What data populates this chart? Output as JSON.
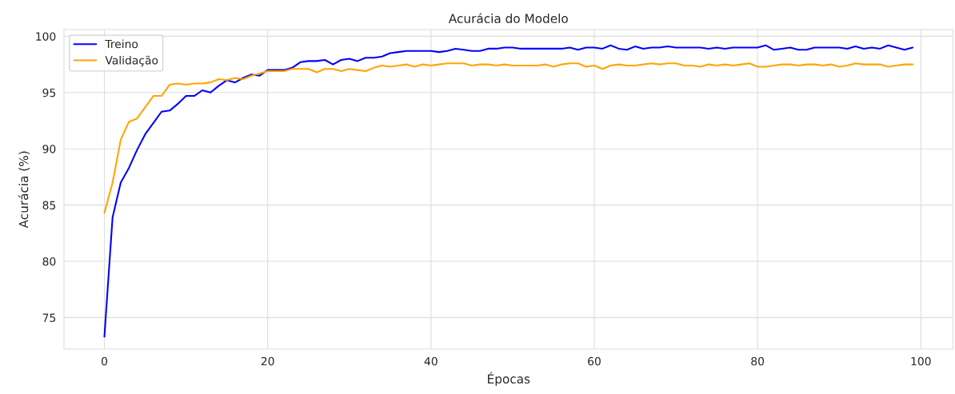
{
  "chart_data": {
    "type": "line",
    "title": "Acurácia do Modelo",
    "xlabel": "Épocas",
    "ylabel": "Acurácia (%)",
    "x": [
      0,
      1,
      2,
      3,
      4,
      5,
      6,
      7,
      8,
      9,
      10,
      11,
      12,
      13,
      14,
      15,
      16,
      17,
      18,
      19,
      20,
      21,
      22,
      23,
      24,
      25,
      26,
      27,
      28,
      29,
      30,
      31,
      32,
      33,
      34,
      35,
      36,
      37,
      38,
      39,
      40,
      41,
      42,
      43,
      44,
      45,
      46,
      47,
      48,
      49,
      50,
      51,
      52,
      53,
      54,
      55,
      56,
      57,
      58,
      59,
      60,
      61,
      62,
      63,
      64,
      65,
      66,
      67,
      68,
      69,
      70,
      71,
      72,
      73,
      74,
      75,
      76,
      77,
      78,
      79,
      80,
      81,
      82,
      83,
      84,
      85,
      86,
      87,
      88,
      89,
      90,
      91,
      92,
      93,
      94,
      95,
      96,
      97,
      98,
      99
    ],
    "series": [
      {
        "name": "Treino",
        "color": "#0000ff",
        "values": [
          73.3,
          83.9,
          87.0,
          88.3,
          89.9,
          91.3,
          92.3,
          93.3,
          93.4,
          94.0,
          94.7,
          94.7,
          95.2,
          95.0,
          95.6,
          96.1,
          95.9,
          96.3,
          96.6,
          96.5,
          97.0,
          97.0,
          97.0,
          97.2,
          97.7,
          97.8,
          97.8,
          97.9,
          97.5,
          97.9,
          98.0,
          97.8,
          98.1,
          98.1,
          98.2,
          98.5,
          98.6,
          98.7,
          98.7,
          98.7,
          98.7,
          98.6,
          98.7,
          98.9,
          98.8,
          98.7,
          98.7,
          98.9,
          98.9,
          99.0,
          99.0,
          98.9,
          98.9,
          98.9,
          98.9,
          98.9,
          98.9,
          99.0,
          98.8,
          99.0,
          99.0,
          98.9,
          99.2,
          98.9,
          98.8,
          99.1,
          98.9,
          99.0,
          99.0,
          99.1,
          99.0,
          99.0,
          99.0,
          99.0,
          98.9,
          99.0,
          98.9,
          99.0,
          99.0,
          99.0,
          99.0,
          99.2,
          98.8,
          98.9,
          99.0,
          98.8,
          98.8,
          99.0,
          99.0,
          99.0,
          99.0,
          98.9,
          99.1,
          98.9,
          99.0,
          98.9,
          99.2,
          99.0,
          98.8,
          99.0
        ]
      },
      {
        "name": "Validação",
        "color": "#ffa500",
        "values": [
          84.3,
          87.0,
          90.8,
          92.4,
          92.7,
          93.7,
          94.7,
          94.7,
          95.7,
          95.8,
          95.7,
          95.8,
          95.8,
          95.9,
          96.2,
          96.1,
          96.3,
          96.2,
          96.5,
          96.7,
          96.9,
          96.9,
          96.9,
          97.1,
          97.1,
          97.1,
          96.8,
          97.1,
          97.1,
          96.9,
          97.1,
          97.0,
          96.9,
          97.2,
          97.4,
          97.3,
          97.4,
          97.5,
          97.3,
          97.5,
          97.4,
          97.5,
          97.6,
          97.6,
          97.6,
          97.4,
          97.5,
          97.5,
          97.4,
          97.5,
          97.4,
          97.4,
          97.4,
          97.4,
          97.5,
          97.3,
          97.5,
          97.6,
          97.6,
          97.3,
          97.4,
          97.1,
          97.4,
          97.5,
          97.4,
          97.4,
          97.5,
          97.6,
          97.5,
          97.6,
          97.6,
          97.4,
          97.4,
          97.3,
          97.5,
          97.4,
          97.5,
          97.4,
          97.5,
          97.6,
          97.3,
          97.3,
          97.4,
          97.5,
          97.5,
          97.4,
          97.5,
          97.5,
          97.4,
          97.5,
          97.3,
          97.4,
          97.6,
          97.5,
          97.5,
          97.5,
          97.3,
          97.4,
          97.5,
          97.5
        ]
      }
    ],
    "xlim": [
      -4.95,
      103.95
    ],
    "ylim": [
      72.2,
      100.6
    ],
    "xticks": [
      0,
      20,
      40,
      60,
      80,
      100
    ],
    "yticks": [
      75,
      80,
      85,
      90,
      95,
      100
    ],
    "grid": true,
    "legend": "top left"
  }
}
